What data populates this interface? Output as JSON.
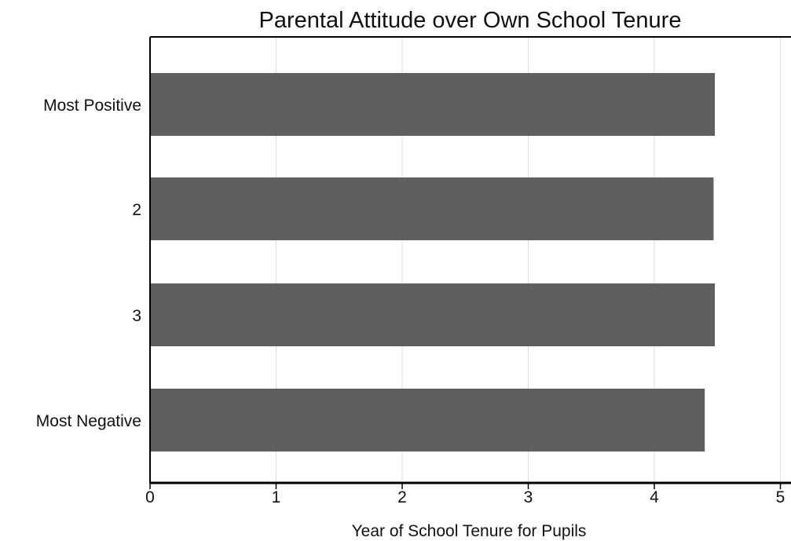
{
  "chart_data": {
    "type": "bar",
    "orientation": "horizontal",
    "title": "Parental Attitude over Own School Tenure",
    "xlabel": "Year of School Tenure for Pupils",
    "ylabel": "",
    "categories": [
      "Most Positive",
      "2",
      "3",
      "Most Negative"
    ],
    "values": [
      4.48,
      4.47,
      4.48,
      4.4
    ],
    "xlim": [
      0,
      5.1
    ],
    "xticks": [
      "0",
      "1",
      "2",
      "3",
      "4",
      "5"
    ],
    "grid": "vertical",
    "legend": "none",
    "bar_color": "#5f5f5f",
    "grid_color": "#dcdcdc",
    "axis_color": "#000000"
  }
}
